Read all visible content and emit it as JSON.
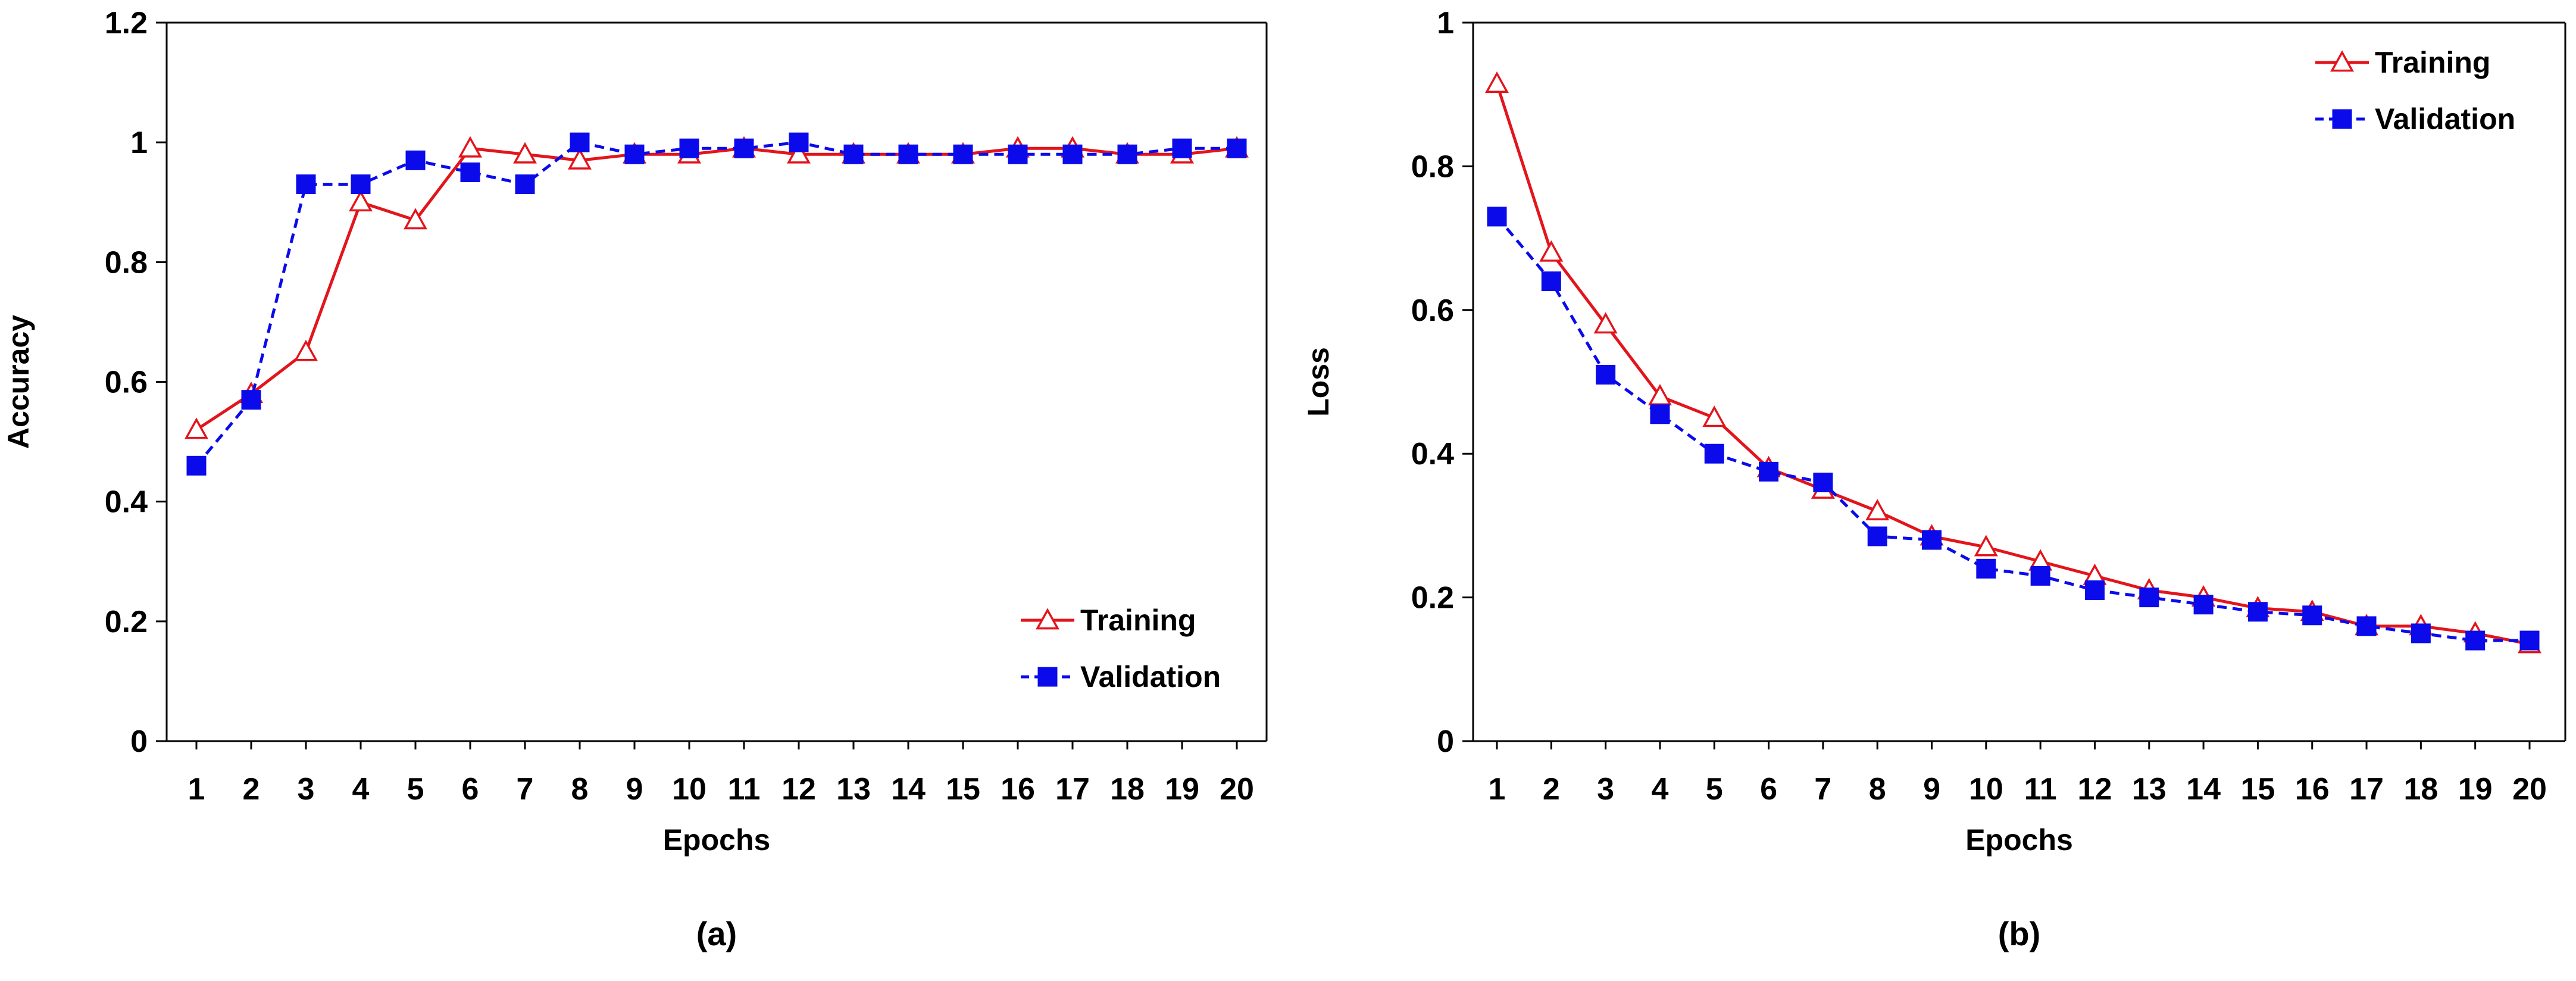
{
  "colors": {
    "training": "#e3141b",
    "validation": "#0a0aeb",
    "axis": "#000000"
  },
  "chart_data": [
    {
      "type": "line",
      "panel_label": "(a)",
      "title": "",
      "xlabel": "Epochs",
      "ylabel": "Accuracy",
      "categories": [
        "1",
        "2",
        "3",
        "4",
        "5",
        "6",
        "7",
        "8",
        "9",
        "10",
        "11",
        "12",
        "13",
        "14",
        "15",
        "16",
        "17",
        "18",
        "19",
        "20"
      ],
      "ylim": [
        0,
        1.2
      ],
      "yticks": [
        "0",
        "0.2",
        "0.4",
        "0.6",
        "0.8",
        "1",
        "1.2"
      ],
      "ytick_values": [
        0,
        0.2,
        0.4,
        0.6,
        0.8,
        1.0,
        1.2
      ],
      "grid": false,
      "legend_position": "bottom-right",
      "series": [
        {
          "name": "Training",
          "marker": "triangle-open",
          "line": "solid",
          "values": [
            0.52,
            0.58,
            0.65,
            0.9,
            0.87,
            0.99,
            0.98,
            0.97,
            0.98,
            0.98,
            0.99,
            0.98,
            0.98,
            0.98,
            0.98,
            0.99,
            0.99,
            0.98,
            0.98,
            0.99
          ]
        },
        {
          "name": "Validation",
          "marker": "square-filled",
          "line": "dashed",
          "values": [
            0.46,
            0.57,
            0.93,
            0.93,
            0.97,
            0.95,
            0.93,
            1.0,
            0.98,
            0.99,
            0.99,
            1.0,
            0.98,
            0.98,
            0.98,
            0.98,
            0.98,
            0.98,
            0.99,
            0.99
          ]
        }
      ]
    },
    {
      "type": "line",
      "panel_label": "(b)",
      "title": "",
      "xlabel": "Epochs",
      "ylabel": "Loss",
      "categories": [
        "1",
        "2",
        "3",
        "4",
        "5",
        "6",
        "7",
        "8",
        "9",
        "10",
        "11",
        "12",
        "13",
        "14",
        "15",
        "16",
        "17",
        "18",
        "19",
        "20"
      ],
      "ylim": [
        0,
        1
      ],
      "yticks": [
        "0",
        "0.2",
        "0.4",
        "0.6",
        "0.8",
        "1"
      ],
      "ytick_values": [
        0,
        0.2,
        0.4,
        0.6,
        0.8,
        1.0
      ],
      "grid": false,
      "legend_position": "top-right",
      "series": [
        {
          "name": "Training",
          "marker": "triangle-open",
          "line": "solid",
          "values": [
            0.915,
            0.68,
            0.58,
            0.48,
            0.45,
            0.38,
            0.35,
            0.32,
            0.285,
            0.27,
            0.25,
            0.23,
            0.21,
            0.2,
            0.185,
            0.18,
            0.16,
            0.16,
            0.15,
            0.135
          ]
        },
        {
          "name": "Validation",
          "marker": "square-filled",
          "line": "dashed",
          "values": [
            0.73,
            0.64,
            0.51,
            0.455,
            0.4,
            0.375,
            0.36,
            0.285,
            0.28,
            0.24,
            0.23,
            0.21,
            0.2,
            0.19,
            0.18,
            0.175,
            0.16,
            0.15,
            0.14,
            0.14
          ]
        }
      ]
    }
  ]
}
